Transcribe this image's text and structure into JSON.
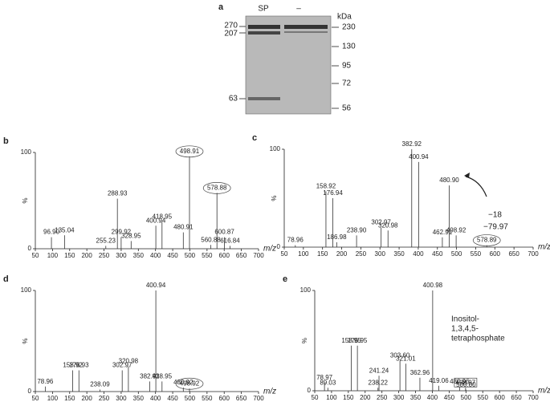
{
  "gel": {
    "label": "a",
    "lanes": [
      "SP",
      "–"
    ],
    "left_markers": [
      "270",
      "207",
      "63"
    ],
    "unit": "kDa",
    "right_markers": [
      "230",
      "130",
      "95",
      "72",
      "56"
    ]
  },
  "chart_data": [
    {
      "type": "spectrum",
      "label": "b",
      "xlabel": "m/z",
      "ylabel": "%",
      "xlim": [
        50,
        700
      ],
      "ylim": [
        0,
        100
      ],
      "xticks": [
        50,
        100,
        150,
        200,
        250,
        300,
        350,
        400,
        450,
        500,
        550,
        600,
        650,
        700
      ],
      "yticks": [
        0,
        100
      ],
      "x": [
        96.9,
        135.04,
        255.23,
        288.93,
        299.92,
        328.95,
        400.94,
        418.95,
        480.91,
        498.91,
        560.88,
        578.88,
        600.87,
        616.84
      ],
      "x_labels": [
        "96.90",
        "135.04",
        "255.23",
        "288.93",
        "299.92",
        "328.95",
        "400.94",
        "418.95",
        "480.91",
        "498.91",
        "560.88",
        "578.88",
        "600.87",
        "616.84"
      ],
      "values": [
        12,
        14,
        3,
        52,
        12,
        8,
        24,
        28,
        17,
        96,
        4,
        58,
        12,
        3
      ],
      "circled": [
        9,
        11
      ]
    },
    {
      "type": "spectrum",
      "label": "c",
      "xlabel": "m/z",
      "ylabel": "%",
      "xlim": [
        50,
        700
      ],
      "ylim": [
        0,
        100
      ],
      "xticks": [
        50,
        100,
        150,
        200,
        250,
        300,
        350,
        400,
        450,
        500,
        550,
        600,
        650,
        700
      ],
      "yticks": [
        0,
        100
      ],
      "x": [
        78.96,
        158.92,
        176.94,
        186.98,
        238.9,
        302.97,
        320.98,
        382.92,
        400.94,
        462.91,
        480.9,
        498.92,
        578.89
      ],
      "x_labels": [
        "78.96",
        "158.92",
        "176.94",
        "186.98",
        "238.90",
        "302.97",
        "320.98",
        "382.92",
        "400.94",
        "462.91",
        "480.90",
        "498.92",
        "578.89"
      ],
      "values": [
        2,
        57,
        50,
        5,
        12,
        20,
        17,
        100,
        87,
        10,
        63,
        12,
        2
      ],
      "circled": [
        12
      ],
      "annotations": [
        "−18",
        "−79.97"
      ]
    },
    {
      "type": "spectrum",
      "label": "d",
      "xlabel": "m/z",
      "ylabel": "%",
      "xlim": [
        50,
        700
      ],
      "ylim": [
        0,
        100
      ],
      "xticks": [
        50,
        100,
        150,
        200,
        250,
        300,
        350,
        400,
        450,
        500,
        550,
        600,
        650,
        700
      ],
      "yticks": [
        0,
        100
      ],
      "x": [
        78.96,
        158.92,
        176.93,
        238.09,
        302.97,
        320.98,
        382.93,
        400.94,
        418.95,
        480.92,
        498.92
      ],
      "x_labels": [
        "78.96",
        "158.92",
        "176.93",
        "238.09",
        "302.97",
        "320.98",
        "382.93",
        "400.94",
        "418.95",
        "480.92",
        "498.92"
      ],
      "values": [
        5,
        21,
        21,
        2,
        21,
        25,
        10,
        100,
        10,
        4,
        3
      ],
      "circled": [
        10
      ]
    },
    {
      "type": "spectrum",
      "label": "e",
      "xlabel": "m/z",
      "ylabel": "%",
      "xlim": [
        50,
        700
      ],
      "ylim": [
        0,
        100
      ],
      "xticks": [
        50,
        100,
        150,
        200,
        250,
        300,
        350,
        400,
        450,
        500,
        550,
        600,
        650,
        700
      ],
      "yticks": [
        0,
        100
      ],
      "x": [
        78.97,
        89.03,
        158.95,
        176.95,
        238.22,
        241.24,
        303.6,
        321.01,
        362.96,
        400.98,
        419.06,
        480.96,
        498.97,
        500
      ],
      "x_labels": [
        "78.97",
        "89.03",
        "158.95",
        "176.95",
        "238.22",
        "241.24",
        "303.60",
        "321.01",
        "362.96",
        "400.98",
        "419.06",
        "480.96",
        "498.97",
        "500.00"
      ],
      "values": [
        8,
        3,
        45,
        45,
        3,
        15,
        30,
        27,
        13,
        100,
        5,
        4,
        3,
        1
      ],
      "boxed": [
        12
      ],
      "annotations": [
        [
          "Inositol-",
          "1,3,4,5-",
          "tetraphosphate"
        ]
      ]
    }
  ]
}
